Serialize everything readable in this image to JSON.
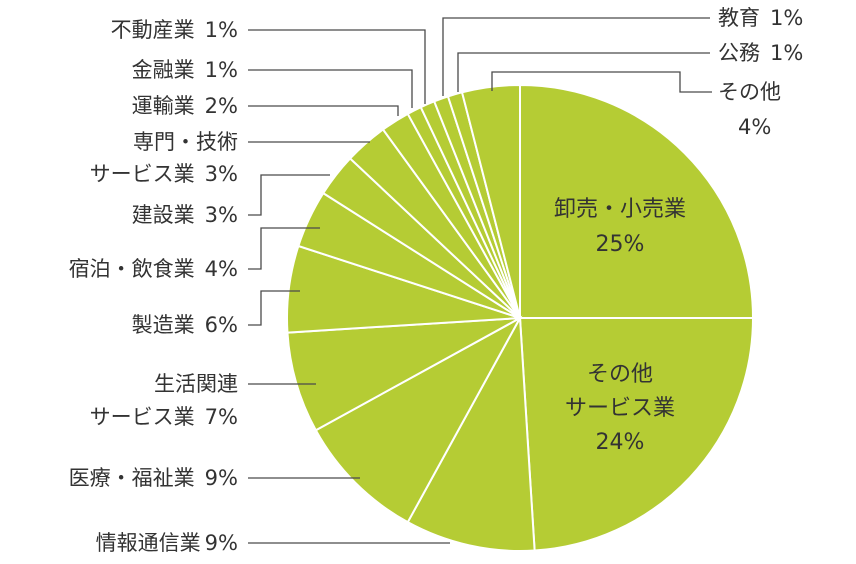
{
  "chart_data": {
    "type": "pie",
    "title": "",
    "start": "12 o'clock",
    "direction": "clockwise",
    "color": "#b5cc34",
    "slices": [
      {
        "label": "卸売・小売業",
        "value": 25,
        "value_label": "25%"
      },
      {
        "label": "その他サービス業",
        "label_lines": [
          "その他",
          "サービス業"
        ],
        "value": 24,
        "value_label": "24%"
      },
      {
        "label": "情報通信業",
        "value": 9,
        "value_label": "9%"
      },
      {
        "label": "医療・福祉業",
        "value": 9,
        "value_label": "9%"
      },
      {
        "label": "生活関連サービス業",
        "label_lines": [
          "生活関連",
          "サービス業"
        ],
        "value": 7,
        "value_label": "7%"
      },
      {
        "label": "製造業",
        "value": 6,
        "value_label": "6%"
      },
      {
        "label": "宿泊・飲食業",
        "value": 4,
        "value_label": "4%"
      },
      {
        "label": "建設業",
        "value": 3,
        "value_label": "3%"
      },
      {
        "label": "専門・技術サービス業",
        "label_lines": [
          "専門・技術",
          "サービス業"
        ],
        "value": 3,
        "value_label": "3%"
      },
      {
        "label": "運輸業",
        "value": 2,
        "value_label": "2%"
      },
      {
        "label": "金融業",
        "value": 1,
        "value_label": "1%"
      },
      {
        "label": "不動産業",
        "value": 1,
        "value_label": "1%"
      },
      {
        "label": "教育",
        "value": 1,
        "value_label": "1%"
      },
      {
        "label": "公務",
        "value": 1,
        "value_label": "1%"
      },
      {
        "label": "その他",
        "value": 4,
        "value_label": "4%"
      }
    ]
  }
}
